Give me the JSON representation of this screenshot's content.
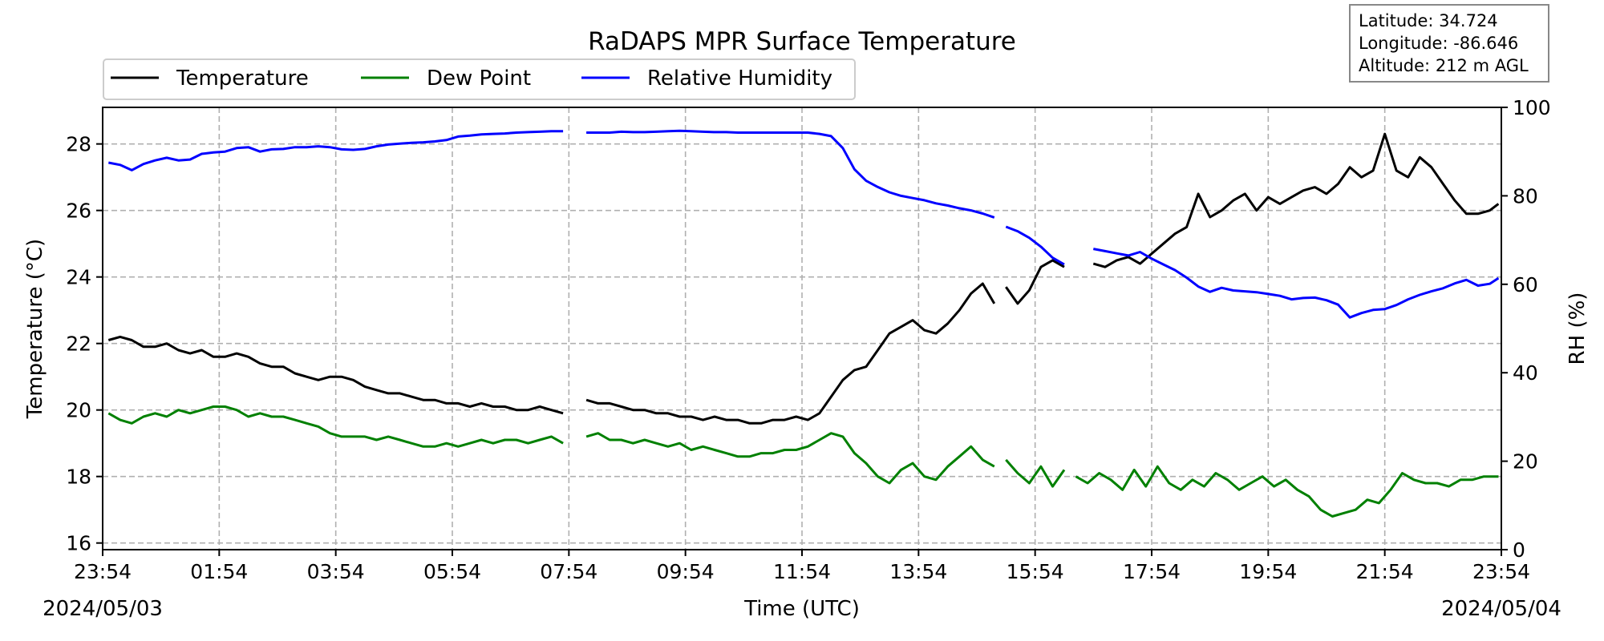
{
  "chart_data": {
    "type": "line",
    "title": "RaDAPS MPR Surface Temperature",
    "xlabel": "Time (UTC)",
    "ylabel": "Temperature ($^\\circ$C)",
    "ylabel_display": "Temperature (°C)",
    "y2label": "RH (%)",
    "ylim": [
      15.8,
      29.1
    ],
    "y2lim": [
      0,
      100
    ],
    "xlim": [
      0,
      24
    ],
    "x_ticks": [
      0,
      2,
      4,
      6,
      8,
      10,
      12,
      14,
      16,
      18,
      20,
      22,
      24
    ],
    "x_tick_labels": [
      "23:54",
      "01:54",
      "03:54",
      "05:54",
      "07:54",
      "09:54",
      "11:54",
      "13:54",
      "15:54",
      "17:54",
      "19:54",
      "21:54",
      "23:54"
    ],
    "y_ticks": [
      16,
      18,
      20,
      22,
      24,
      26,
      28
    ],
    "y2_ticks": [
      0,
      20,
      40,
      60,
      80,
      100
    ],
    "start_date": "2024/05/03",
    "end_date": "2024/05/04",
    "grid": true,
    "legend_placement": "top-left",
    "info_box": [
      "Latitude: 34.724",
      "Longitude: -86.646",
      "Altitude: 212 m AGL"
    ],
    "series": [
      {
        "name": "Temperature",
        "color": "#000000",
        "axis": "left",
        "segments": [
          {
            "x": [
              0.1,
              0.3,
              0.5,
              0.7,
              0.9,
              1.1,
              1.3,
              1.5,
              1.7,
              1.9,
              2.1,
              2.3,
              2.5,
              2.7,
              2.9,
              3.1,
              3.3,
              3.5,
              3.7,
              3.9,
              4.1,
              4.3,
              4.5,
              4.7,
              4.9,
              5.1,
              5.3,
              5.5,
              5.7,
              5.9,
              6.1,
              6.3,
              6.5,
              6.7,
              6.9,
              7.1,
              7.3,
              7.5,
              7.7,
              7.9
            ],
            "y": [
              22.1,
              22.2,
              22.1,
              21.9,
              21.9,
              22.0,
              21.8,
              21.7,
              21.8,
              21.6,
              21.6,
              21.7,
              21.6,
              21.4,
              21.3,
              21.3,
              21.1,
              21.0,
              20.9,
              21.0,
              21.0,
              20.9,
              20.7,
              20.6,
              20.5,
              20.5,
              20.4,
              20.3,
              20.3,
              20.2,
              20.2,
              20.1,
              20.2,
              20.1,
              20.1,
              20.0,
              20.0,
              20.1,
              20.0,
              19.9
            ]
          },
          {
            "x": [
              8.3,
              8.5,
              8.7,
              8.9,
              9.1,
              9.3,
              9.5,
              9.7,
              9.9,
              10.1,
              10.3,
              10.5,
              10.7,
              10.9,
              11.1,
              11.3,
              11.5,
              11.7,
              11.9,
              12.1,
              12.3,
              12.5,
              12.7,
              12.9,
              13.1,
              13.3,
              13.5,
              13.7,
              13.9,
              14.1,
              14.3,
              14.5,
              14.7,
              14.9,
              15.1,
              15.3
            ],
            "y": [
              20.3,
              20.2,
              20.2,
              20.1,
              20.0,
              20.0,
              19.9,
              19.9,
              19.8,
              19.8,
              19.7,
              19.8,
              19.7,
              19.7,
              19.6,
              19.6,
              19.7,
              19.7,
              19.8,
              19.7,
              19.9,
              20.4,
              20.9,
              21.2,
              21.3,
              21.8,
              22.3,
              22.5,
              22.7,
              22.4,
              22.3,
              22.6,
              23.0,
              23.5,
              23.8,
              23.2
            ]
          },
          {
            "x": [
              15.5,
              15.7,
              15.9,
              16.1,
              16.3,
              16.5
            ],
            "y": [
              23.7,
              23.2,
              23.6,
              24.3,
              24.5,
              24.3
            ]
          },
          {
            "x": [
              17.0,
              17.2,
              17.4,
              17.6,
              17.8,
              18.0,
              18.2,
              18.4,
              18.6,
              18.8,
              19.0,
              19.2,
              19.4,
              19.6,
              19.8,
              20.0,
              20.2,
              20.4,
              20.6,
              20.8,
              21.0,
              21.2,
              21.4,
              21.6,
              21.8,
              22.0,
              22.2,
              22.4,
              22.6,
              22.8,
              23.0,
              23.2,
              23.4,
              23.6,
              23.8,
              23.95
            ],
            "y": [
              24.4,
              24.3,
              24.5,
              24.6,
              24.4,
              24.7,
              25.0,
              25.3,
              25.5,
              26.5,
              25.8,
              26.0,
              26.3,
              26.5,
              26.0,
              26.4,
              26.2,
              26.4,
              26.6,
              26.7,
              26.5,
              26.8,
              27.3,
              27.0,
              27.2,
              28.3,
              27.2,
              27.0,
              27.6,
              27.3,
              26.8,
              26.3,
              25.9,
              25.9,
              26.0,
              26.2
            ]
          }
        ]
      },
      {
        "name": "Dew Point",
        "color": "#008000",
        "axis": "left",
        "segments": [
          {
            "x": [
              0.1,
              0.3,
              0.5,
              0.7,
              0.9,
              1.1,
              1.3,
              1.5,
              1.7,
              1.9,
              2.1,
              2.3,
              2.5,
              2.7,
              2.9,
              3.1,
              3.3,
              3.5,
              3.7,
              3.9,
              4.1,
              4.3,
              4.5,
              4.7,
              4.9,
              5.1,
              5.3,
              5.5,
              5.7,
              5.9,
              6.1,
              6.3,
              6.5,
              6.7,
              6.9,
              7.1,
              7.3,
              7.5,
              7.7,
              7.9
            ],
            "y": [
              19.9,
              19.7,
              19.6,
              19.8,
              19.9,
              19.8,
              20.0,
              19.9,
              20.0,
              20.1,
              20.1,
              20.0,
              19.8,
              19.9,
              19.8,
              19.8,
              19.7,
              19.6,
              19.5,
              19.3,
              19.2,
              19.2,
              19.2,
              19.1,
              19.2,
              19.1,
              19.0,
              18.9,
              18.9,
              19.0,
              18.9,
              19.0,
              19.1,
              19.0,
              19.1,
              19.1,
              19.0,
              19.1,
              19.2,
              19.0
            ]
          },
          {
            "x": [
              8.3,
              8.5,
              8.7,
              8.9,
              9.1,
              9.3,
              9.5,
              9.7,
              9.9,
              10.1,
              10.3,
              10.5,
              10.7,
              10.9,
              11.1,
              11.3,
              11.5,
              11.7,
              11.9,
              12.1,
              12.3,
              12.5,
              12.7,
              12.9,
              13.1,
              13.3,
              13.5,
              13.7,
              13.9,
              14.1,
              14.3,
              14.5,
              14.7,
              14.9,
              15.1,
              15.3
            ],
            "y": [
              19.2,
              19.3,
              19.1,
              19.1,
              19.0,
              19.1,
              19.0,
              18.9,
              19.0,
              18.8,
              18.9,
              18.8,
              18.7,
              18.6,
              18.6,
              18.7,
              18.7,
              18.8,
              18.8,
              18.9,
              19.1,
              19.3,
              19.2,
              18.7,
              18.4,
              18.0,
              17.8,
              18.2,
              18.4,
              18.0,
              17.9,
              18.3,
              18.6,
              18.9,
              18.5,
              18.3
            ]
          },
          {
            "x": [
              15.5,
              15.7,
              15.9,
              16.1,
              16.3,
              16.5
            ],
            "y": [
              18.5,
              18.1,
              17.8,
              18.3,
              17.7,
              18.2
            ]
          },
          {
            "x": [
              16.7,
              16.9,
              17.1,
              17.3,
              17.5,
              17.7,
              17.9,
              18.1,
              18.3,
              18.5,
              18.7,
              18.9,
              19.1,
              19.3,
              19.5,
              19.7,
              19.9,
              20.1,
              20.3,
              20.5,
              20.7,
              20.9,
              21.1,
              21.3,
              21.5,
              21.7,
              21.9,
              22.1,
              22.3,
              22.5,
              22.7,
              22.9,
              23.1,
              23.3,
              23.5,
              23.7,
              23.95
            ],
            "y": [
              18.0,
              17.8,
              18.1,
              17.9,
              17.6,
              18.2,
              17.7,
              18.3,
              17.8,
              17.6,
              17.9,
              17.7,
              18.1,
              17.9,
              17.6,
              17.8,
              18.0,
              17.7,
              17.9,
              17.6,
              17.4,
              17.0,
              16.8,
              16.9,
              17.0,
              17.3,
              17.2,
              17.6,
              18.1,
              17.9,
              17.8,
              17.8,
              17.7,
              17.9,
              17.9,
              18.0,
              18.0
            ]
          }
        ]
      },
      {
        "name": "Relative Humidity",
        "color": "#0000ff",
        "axis": "right",
        "segments": [
          {
            "x": [
              0.1,
              0.3,
              0.5,
              0.7,
              0.9,
              1.1,
              1.3,
              1.5,
              1.7,
              1.9,
              2.1,
              2.3,
              2.5,
              2.7,
              2.9,
              3.1,
              3.3,
              3.5,
              3.7,
              3.9,
              4.1,
              4.3,
              4.5,
              4.7,
              4.9,
              5.1,
              5.3,
              5.5,
              5.7,
              5.9,
              6.1,
              6.3,
              6.5,
              6.7,
              6.9,
              7.1,
              7.3,
              7.5,
              7.7,
              7.9
            ],
            "y": [
              87.5,
              87.0,
              85.8,
              87.2,
              88.0,
              88.6,
              88.0,
              88.2,
              89.5,
              89.8,
              90.0,
              90.8,
              91.0,
              90.0,
              90.5,
              90.6,
              91.0,
              91.0,
              91.2,
              91.0,
              90.5,
              90.4,
              90.6,
              91.2,
              91.6,
              91.8,
              92.0,
              92.1,
              92.3,
              92.6,
              93.4,
              93.6,
              93.9,
              94.0,
              94.1,
              94.3,
              94.4,
              94.5,
              94.6,
              94.6
            ]
          },
          {
            "x": [
              8.3,
              8.5,
              8.7,
              8.9,
              9.1,
              9.3,
              9.5,
              9.7,
              9.9,
              10.1,
              10.3,
              10.5,
              10.7,
              10.9,
              11.1,
              11.3,
              11.5,
              11.7,
              11.9,
              12.1,
              12.3,
              12.5,
              12.7,
              12.9,
              13.1,
              13.3,
              13.5,
              13.7,
              13.9,
              14.1,
              14.3,
              14.5,
              14.7,
              14.9,
              15.1,
              15.3
            ],
            "y": [
              94.3,
              94.3,
              94.3,
              94.5,
              94.4,
              94.4,
              94.5,
              94.6,
              94.7,
              94.6,
              94.5,
              94.4,
              94.4,
              94.3,
              94.3,
              94.3,
              94.3,
              94.3,
              94.3,
              94.3,
              94.0,
              93.5,
              90.8,
              86.0,
              83.4,
              82.0,
              80.8,
              80.0,
              79.5,
              79.0,
              78.3,
              77.8,
              77.2,
              76.7,
              76.0,
              75.1
            ]
          },
          {
            "x": [
              15.5,
              15.7,
              15.9,
              16.1,
              16.3,
              16.5
            ],
            "y": [
              73.0,
              72.0,
              70.5,
              68.5,
              66.0,
              64.5
            ]
          },
          {
            "x": [
              17.0,
              17.2,
              17.4,
              17.6,
              17.8,
              18.0,
              18.2,
              18.4,
              18.6,
              18.8,
              19.0,
              19.2,
              19.4,
              19.6,
              19.8,
              20.0,
              20.2,
              20.4,
              20.6,
              20.8,
              21.0,
              21.2,
              21.4,
              21.6,
              21.8,
              22.0,
              22.2,
              22.4,
              22.6,
              22.8,
              23.0,
              23.2,
              23.4,
              23.6,
              23.8,
              23.95
            ],
            "y": [
              68.0,
              67.5,
              67.0,
              66.5,
              67.3,
              65.8,
              64.5,
              63.2,
              61.5,
              59.5,
              58.3,
              59.2,
              58.6,
              58.4,
              58.2,
              57.8,
              57.4,
              56.6,
              56.9,
              57.0,
              56.4,
              55.4,
              52.5,
              53.5,
              54.2,
              54.4,
              55.3,
              56.6,
              57.6,
              58.4,
              59.1,
              60.2,
              61.0,
              59.7,
              60.1,
              61.4
            ]
          }
        ]
      }
    ]
  }
}
